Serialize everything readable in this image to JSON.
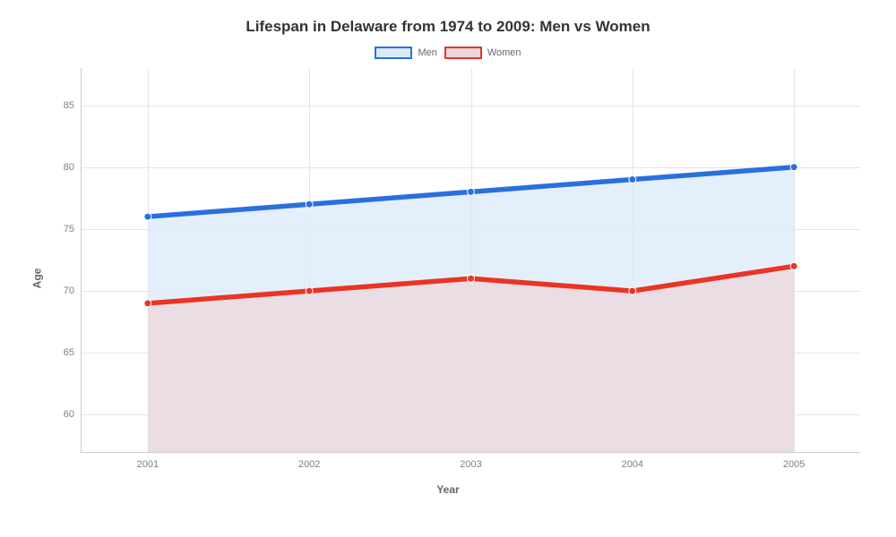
{
  "chart": {
    "type": "area-line",
    "title": "Lifespan in Delaware from 1974 to 2009: Men vs Women",
    "title_fontsize": 17,
    "title_color": "#333333",
    "background_color": "#ffffff",
    "xlabel": "Year",
    "ylabel": "Age",
    "axis_label_fontsize": 12,
    "axis_label_color": "#666666",
    "tick_fontsize": 11,
    "tick_color": "#808080",
    "grid_color": "#e5e5e5",
    "axis_line_color": "#cccccc",
    "x": {
      "categories": [
        "2001",
        "2002",
        "2003",
        "2004",
        "2005"
      ],
      "positions": [
        0.085,
        0.2925,
        0.5,
        0.7075,
        0.915
      ]
    },
    "y": {
      "min": 57,
      "max": 88,
      "ticks": [
        60,
        65,
        70,
        75,
        80,
        85
      ]
    },
    "series": [
      {
        "name": "Men",
        "values": [
          76,
          77,
          78,
          79,
          80
        ],
        "line_color": "#2b6fdf",
        "fill_color": "#dbe9fb",
        "fill_opacity": 0.75,
        "line_width": 2.5,
        "marker_radius": 4,
        "marker_fill": "#2b6fdf",
        "marker_stroke": "#ffffff"
      },
      {
        "name": "Women",
        "values": [
          69,
          70,
          71,
          70,
          72
        ],
        "line_color": "#ea3424",
        "fill_color": "#ecd7db",
        "fill_opacity": 0.75,
        "line_width": 2.5,
        "marker_radius": 4,
        "marker_fill": "#ea3424",
        "marker_stroke": "#ffffff"
      }
    ],
    "legend": {
      "position": "top-center",
      "items": [
        {
          "label": "Men",
          "border_color": "#2b6fdf",
          "fill_color": "#dbe9fb"
        },
        {
          "label": "Women",
          "border_color": "#ea3424",
          "fill_color": "#ecd7db"
        }
      ],
      "label_fontsize": 11,
      "label_color": "#666666"
    }
  }
}
